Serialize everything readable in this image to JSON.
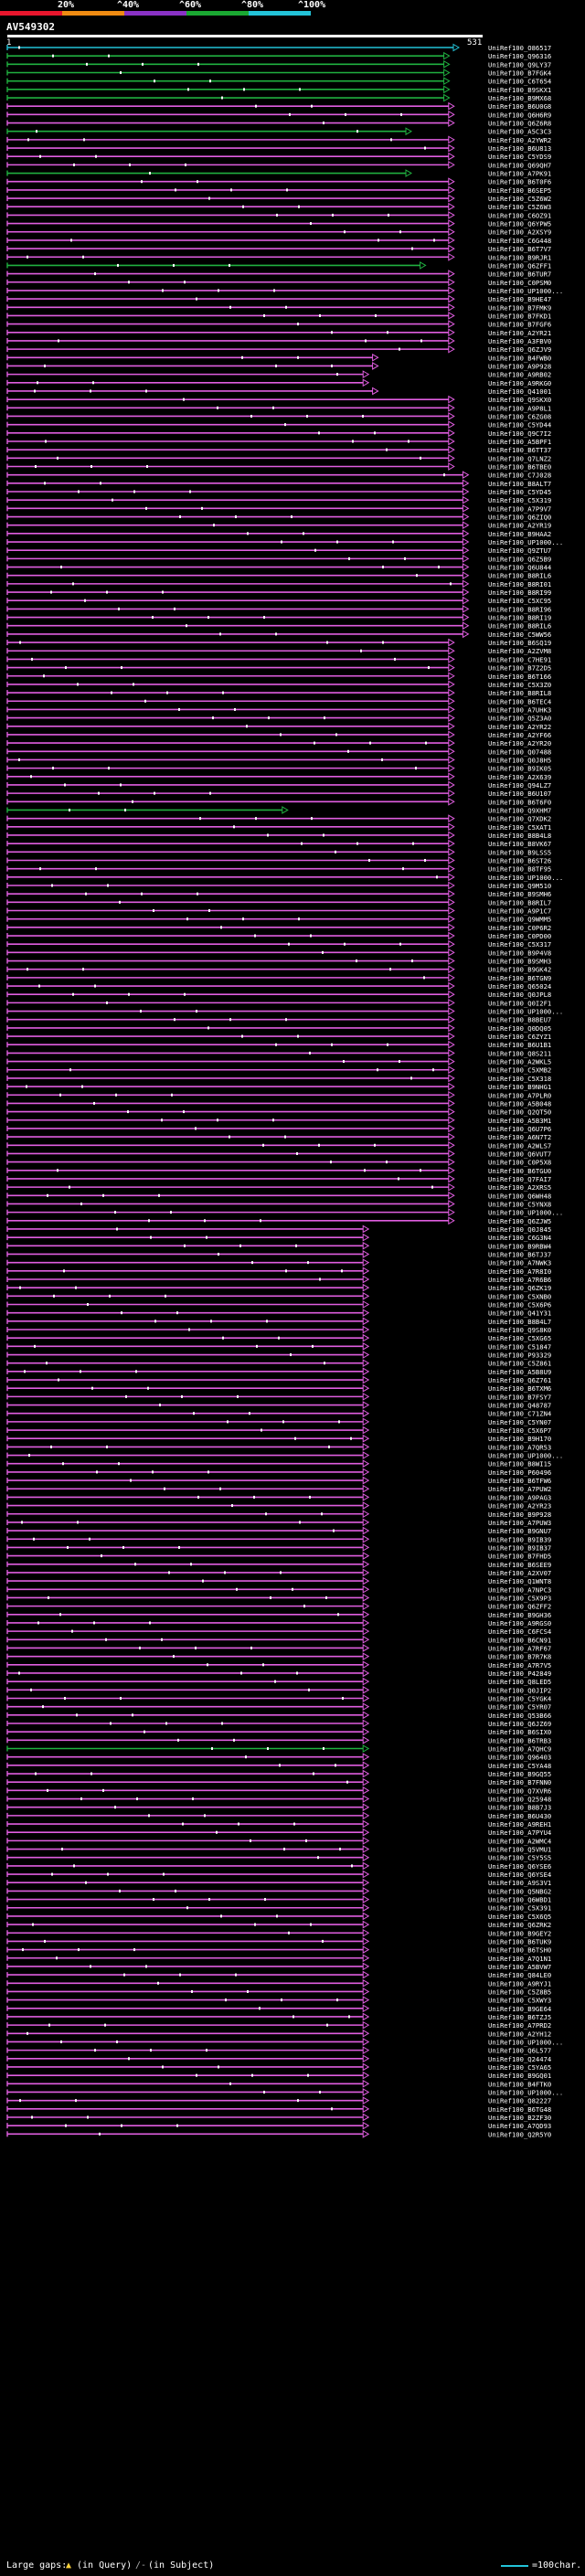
{
  "scale": {
    "labels": [
      "20%",
      "^40%",
      "^60%",
      "^80%",
      "^100%"
    ],
    "colors": [
      "#e8162d",
      "#ef8b12",
      "#8a32c6",
      "#1aa832",
      "#23c3d8"
    ]
  },
  "query": {
    "id": "AV549302",
    "start": "1",
    "end": "531"
  },
  "colors": {
    "pink": "#e05ee0",
    "green": "#20b040",
    "cyan": "#23c3d8",
    "white": "#ffffff",
    "black": "#000000"
  },
  "hits": [
    {
      "id": "UniRef100_O86517",
      "c": "c",
      "e": 0.95
    },
    {
      "id": "UniRef100_Q96316",
      "c": "g",
      "e": 0.93
    },
    {
      "id": "UniRef100_Q9LY37",
      "c": "g",
      "e": 0.93
    },
    {
      "id": "UniRef100_B7FGK4",
      "c": "g",
      "e": 0.93
    },
    {
      "id": "UniRef100_C6T654",
      "c": "g",
      "e": 0.93
    },
    {
      "id": "UniRef100_B9SKX1",
      "c": "g",
      "e": 0.93
    },
    {
      "id": "UniRef100_B9MX68",
      "c": "g",
      "e": 0.93
    },
    {
      "id": "UniRef100_B6U0G8",
      "c": "p",
      "e": 0.94
    },
    {
      "id": "UniRef100_Q6H6R9",
      "c": "p",
      "e": 0.94
    },
    {
      "id": "UniRef100_Q6Z6R8",
      "c": "p",
      "e": 0.94
    },
    {
      "id": "UniRef100_A5C3C3",
      "c": "g",
      "e": 0.85
    },
    {
      "id": "UniRef100_A2YWR2",
      "c": "p",
      "e": 0.94
    },
    {
      "id": "UniRef100_B6U813",
      "c": "p",
      "e": 0.94
    },
    {
      "id": "UniRef100_C5YDS9",
      "c": "p",
      "e": 0.94
    },
    {
      "id": "UniRef100_Q69QH7",
      "c": "p",
      "e": 0.94
    },
    {
      "id": "UniRef100_A7PK91",
      "c": "g",
      "e": 0.85
    },
    {
      "id": "UniRef100_B6T0F6",
      "c": "p",
      "e": 0.94
    },
    {
      "id": "UniRef100_B6SEP5",
      "c": "p",
      "e": 0.94
    },
    {
      "id": "UniRef100_C5Z6W2",
      "c": "p",
      "e": 0.94
    },
    {
      "id": "UniRef100_C5Z6W3",
      "c": "p",
      "e": 0.94
    },
    {
      "id": "UniRef100_C6OZ91",
      "c": "p",
      "e": 0.94
    },
    {
      "id": "UniRef100_Q6YPW5",
      "c": "p",
      "e": 0.94
    },
    {
      "id": "UniRef100_A2XSY9",
      "c": "p",
      "e": 0.94
    },
    {
      "id": "UniRef100_C6G448",
      "c": "p",
      "e": 0.94
    },
    {
      "id": "UniRef100_B6T7V7",
      "c": "p",
      "e": 0.94
    },
    {
      "id": "UniRef100_B9RJR1",
      "c": "p",
      "e": 0.94
    },
    {
      "id": "UniRef100_Q6ZFF1",
      "c": "g",
      "e": 0.88
    },
    {
      "id": "UniRef100_B6TUR7",
      "c": "p",
      "e": 0.94
    },
    {
      "id": "UniRef100_C0PSM0",
      "c": "p",
      "e": 0.94
    },
    {
      "id": "UniRef100_UP1000...",
      "c": "p",
      "e": 0.94
    },
    {
      "id": "UniRef100_B9HE47",
      "c": "p",
      "e": 0.94
    },
    {
      "id": "UniRef100_B7FMK9",
      "c": "p",
      "e": 0.94
    },
    {
      "id": "UniRef100_B7FKD1",
      "c": "p",
      "e": 0.94
    },
    {
      "id": "UniRef100_B7FGF6",
      "c": "p",
      "e": 0.94
    },
    {
      "id": "UniRef100_A2YR21",
      "c": "p",
      "e": 0.94
    },
    {
      "id": "UniRef100_A3FBV0",
      "c": "p",
      "e": 0.94
    },
    {
      "id": "UniRef100_Q6ZJV9",
      "c": "p",
      "e": 0.94
    },
    {
      "id": "UniRef100_B4FWB0",
      "c": "p",
      "e": 0.78
    },
    {
      "id": "UniRef100_A9P928",
      "c": "p",
      "e": 0.78
    },
    {
      "id": "UniRef100_A9RB02",
      "c": "p",
      "e": 0.76
    },
    {
      "id": "UniRef100_A9RKG0",
      "c": "p",
      "e": 0.76
    },
    {
      "id": "UniRef100_Q41001",
      "c": "p",
      "e": 0.78
    },
    {
      "id": "UniRef100_Q9SKX0",
      "c": "p",
      "e": 0.94
    },
    {
      "id": "UniRef100_A9P8L1",
      "c": "p",
      "e": 0.94
    },
    {
      "id": "UniRef100_C6ZG08",
      "c": "p",
      "e": 0.94
    },
    {
      "id": "UniRef100_C5YD44",
      "c": "p",
      "e": 0.94
    },
    {
      "id": "UniRef100_Q9C7I2",
      "c": "p",
      "e": 0.94
    },
    {
      "id": "UniRef100_A5BPF1",
      "c": "p",
      "e": 0.94
    },
    {
      "id": "UniRef100_B6TT37",
      "c": "p",
      "e": 0.94
    },
    {
      "id": "UniRef100_Q7LNZ2",
      "c": "p",
      "e": 0.94
    },
    {
      "id": "UniRef100_B6TBE0",
      "c": "p",
      "e": 0.94
    },
    {
      "id": "UniRef100_C7J028",
      "c": "p",
      "e": 0.97
    },
    {
      "id": "UniRef100_B8ALT7",
      "c": "p",
      "e": 0.97
    },
    {
      "id": "UniRef100_C5YD45",
      "c": "p",
      "e": 0.97
    },
    {
      "id": "UniRef100_C5X319",
      "c": "p",
      "e": 0.97
    },
    {
      "id": "UniRef100_A7P9V7",
      "c": "p",
      "e": 0.97
    },
    {
      "id": "UniRef100_Q6ZIQ0",
      "c": "p",
      "e": 0.97
    },
    {
      "id": "UniRef100_A2YR19",
      "c": "p",
      "e": 0.97
    },
    {
      "id": "UniRef100_B9HAA2",
      "c": "p",
      "e": 0.97
    },
    {
      "id": "UniRef100_UP1000...",
      "c": "p",
      "e": 0.97
    },
    {
      "id": "UniRef100_Q9ZTU7",
      "c": "p",
      "e": 0.97
    },
    {
      "id": "UniRef100_Q6Z5B9",
      "c": "p",
      "e": 0.97
    },
    {
      "id": "UniRef100_Q6U844",
      "c": "p",
      "e": 0.97
    },
    {
      "id": "UniRef100_B8RIL6",
      "c": "p",
      "e": 0.97
    },
    {
      "id": "UniRef100_B8RI01",
      "c": "p",
      "e": 0.97
    },
    {
      "id": "UniRef100_B8RI99",
      "c": "p",
      "e": 0.97
    },
    {
      "id": "UniRef100_C5XC95",
      "c": "p",
      "e": 0.97
    },
    {
      "id": "UniRef100_B8RI96",
      "c": "p",
      "e": 0.97
    },
    {
      "id": "UniRef100_B8RI19",
      "c": "p",
      "e": 0.97
    },
    {
      "id": "UniRef100_B8RIL6",
      "c": "p",
      "e": 0.97
    },
    {
      "id": "UniRef100_C5WW56",
      "c": "p",
      "e": 0.97
    },
    {
      "id": "UniRef100_B6SQ19",
      "c": "p",
      "e": 0.94
    },
    {
      "id": "UniRef100_A2ZVM8",
      "c": "p",
      "e": 0.94
    },
    {
      "id": "UniRef100_C7HE91",
      "c": "p",
      "e": 0.94
    },
    {
      "id": "UniRef100_B7Z2D5",
      "c": "p",
      "e": 0.94
    },
    {
      "id": "UniRef100_B6T166",
      "c": "p",
      "e": 0.94
    },
    {
      "id": "UniRef100_C5X3Z0",
      "c": "p",
      "e": 0.94
    },
    {
      "id": "UniRef100_B8RIL8",
      "c": "p",
      "e": 0.94
    },
    {
      "id": "UniRef100_B6TEC4",
      "c": "p",
      "e": 0.94
    },
    {
      "id": "UniRef100_A7UHK3",
      "c": "p",
      "e": 0.94
    },
    {
      "id": "UniRef100_Q5Z3A0",
      "c": "p",
      "e": 0.94
    },
    {
      "id": "UniRef100_A2YR22",
      "c": "p",
      "e": 0.94
    },
    {
      "id": "UniRef100_A2YF66",
      "c": "p",
      "e": 0.94
    },
    {
      "id": "UniRef100_A2YR20",
      "c": "p",
      "e": 0.94
    },
    {
      "id": "UniRef100_Q07488",
      "c": "p",
      "e": 0.94
    },
    {
      "id": "UniRef100_Q0J8H5",
      "c": "p",
      "e": 0.94
    },
    {
      "id": "UniRef100_B9IK05",
      "c": "p",
      "e": 0.94
    },
    {
      "id": "UniRef100_A2X639",
      "c": "p",
      "e": 0.94
    },
    {
      "id": "UniRef100_Q94LZ7",
      "c": "p",
      "e": 0.94
    },
    {
      "id": "UniRef100_B6U107",
      "c": "p",
      "e": 0.94
    },
    {
      "id": "UniRef100_B6T6F0",
      "c": "p",
      "e": 0.94
    },
    {
      "id": "UniRef100_Q9XHM7",
      "c": "g",
      "e": 0.59
    },
    {
      "id": "UniRef100_Q7XDK2",
      "c": "p",
      "e": 0.94
    },
    {
      "id": "UniRef100_C5XAT1",
      "c": "p",
      "e": 0.94
    },
    {
      "id": "UniRef100_B8B4L8",
      "c": "p",
      "e": 0.94
    },
    {
      "id": "UniRef100_B8VK67",
      "c": "p",
      "e": 0.94
    },
    {
      "id": "UniRef100_B9LSS5",
      "c": "p",
      "e": 0.94
    },
    {
      "id": "UniRef100_B6ST26",
      "c": "p",
      "e": 0.94
    },
    {
      "id": "UniRef100_B8TF95",
      "c": "p",
      "e": 0.94
    },
    {
      "id": "UniRef100_UP1000...",
      "c": "p",
      "e": 0.94
    },
    {
      "id": "UniRef100_Q9M510",
      "c": "p",
      "e": 0.94
    },
    {
      "id": "UniRef100_B9SMH6",
      "c": "p",
      "e": 0.94
    },
    {
      "id": "UniRef100_B8RIL7",
      "c": "p",
      "e": 0.94
    },
    {
      "id": "UniRef100_A9P1C7",
      "c": "p",
      "e": 0.94
    },
    {
      "id": "UniRef100_Q9WMM5",
      "c": "p",
      "e": 0.94
    },
    {
      "id": "UniRef100_C0P6R2",
      "c": "p",
      "e": 0.94
    },
    {
      "id": "UniRef100_C0PD00",
      "c": "p",
      "e": 0.94
    },
    {
      "id": "UniRef100_C5X317",
      "c": "p",
      "e": 0.94
    },
    {
      "id": "UniRef100_B9P4V8",
      "c": "p",
      "e": 0.94
    },
    {
      "id": "UniRef100_B9SMH3",
      "c": "p",
      "e": 0.94
    },
    {
      "id": "UniRef100_B9GK42",
      "c": "p",
      "e": 0.94
    },
    {
      "id": "UniRef100_B6TGN9",
      "c": "p",
      "e": 0.94
    },
    {
      "id": "UniRef100_Q65024",
      "c": "p",
      "e": 0.94
    },
    {
      "id": "UniRef100_Q0JPL8",
      "c": "p",
      "e": 0.94
    },
    {
      "id": "UniRef100_Q0I2F1",
      "c": "p",
      "e": 0.94
    },
    {
      "id": "UniRef100_UP1000...",
      "c": "p",
      "e": 0.94
    },
    {
      "id": "UniRef100_B8BEU7",
      "c": "p",
      "e": 0.94
    },
    {
      "id": "UniRef100_Q0DQ05",
      "c": "p",
      "e": 0.94
    },
    {
      "id": "UniRef100_C6ZYZ1",
      "c": "p",
      "e": 0.94
    },
    {
      "id": "UniRef100_B6U1B1",
      "c": "p",
      "e": 0.94
    },
    {
      "id": "UniRef100_Q8S211",
      "c": "p",
      "e": 0.94
    },
    {
      "id": "UniRef100_A2WKL5",
      "c": "p",
      "e": 0.94
    },
    {
      "id": "UniRef100_C5XMB2",
      "c": "p",
      "e": 0.94
    },
    {
      "id": "UniRef100_C5X318",
      "c": "p",
      "e": 0.94
    },
    {
      "id": "UniRef100_B9NHG1",
      "c": "p",
      "e": 0.94
    },
    {
      "id": "UniRef100_A7PLR0",
      "c": "p",
      "e": 0.94
    },
    {
      "id": "UniRef100_A5B048",
      "c": "p",
      "e": 0.94
    },
    {
      "id": "UniRef100_Q2QT50",
      "c": "p",
      "e": 0.94
    },
    {
      "id": "UniRef100_A5B3M1",
      "c": "p",
      "e": 0.94
    },
    {
      "id": "UniRef100_Q6U7P6",
      "c": "p",
      "e": 0.94
    },
    {
      "id": "UniRef100_A6N7T2",
      "c": "p",
      "e": 0.94
    },
    {
      "id": "UniRef100_A2WLS7",
      "c": "p",
      "e": 0.94
    },
    {
      "id": "UniRef100_Q6VUT7",
      "c": "p",
      "e": 0.94
    },
    {
      "id": "UniRef100_C0P5X8",
      "c": "p",
      "e": 0.94
    },
    {
      "id": "UniRef100_B6TGU0",
      "c": "p",
      "e": 0.94
    },
    {
      "id": "UniRef100_Q7FAI7",
      "c": "p",
      "e": 0.94
    },
    {
      "id": "UniRef100_A2XRS5",
      "c": "p",
      "e": 0.94
    },
    {
      "id": "UniRef100_Q6WH48",
      "c": "p",
      "e": 0.94
    },
    {
      "id": "UniRef100_C5YNX8",
      "c": "p",
      "e": 0.94
    },
    {
      "id": "UniRef100_UP1000...",
      "c": "p",
      "e": 0.94
    },
    {
      "id": "UniRef100_Q6ZJW5",
      "c": "p",
      "e": 0.94
    },
    {
      "id": "UniRef100_Q0J845",
      "c": "p",
      "e": 0.76
    },
    {
      "id": "UniRef100_C6G3N4",
      "c": "p",
      "e": 0.76
    },
    {
      "id": "UniRef100_B9RBW4",
      "c": "p",
      "e": 0.76
    },
    {
      "id": "UniRef100_B6TJ37",
      "c": "p",
      "e": 0.76
    },
    {
      "id": "UniRef100_A7NWK3",
      "c": "p",
      "e": 0.76
    },
    {
      "id": "UniRef100_A7R8I0",
      "c": "p",
      "e": 0.76
    },
    {
      "id": "UniRef100_A7R6B6",
      "c": "p",
      "e": 0.76
    },
    {
      "id": "UniRef100_Q6ZK19",
      "c": "p",
      "e": 0.76
    },
    {
      "id": "UniRef100_C5XNB0",
      "c": "p",
      "e": 0.76
    },
    {
      "id": "UniRef100_C5X6P6",
      "c": "p",
      "e": 0.76
    },
    {
      "id": "UniRef100_Q41Y31",
      "c": "p",
      "e": 0.76
    },
    {
      "id": "UniRef100_B8B4L7",
      "c": "p",
      "e": 0.76
    },
    {
      "id": "UniRef100_Q9S8K0",
      "c": "p",
      "e": 0.76
    },
    {
      "id": "UniRef100_C5XG65",
      "c": "p",
      "e": 0.76
    },
    {
      "id": "UniRef100_C51847",
      "c": "p",
      "e": 0.76
    },
    {
      "id": "UniRef100_P93329",
      "c": "p",
      "e": 0.76
    },
    {
      "id": "UniRef100_C5Z861",
      "c": "p",
      "e": 0.76
    },
    {
      "id": "UniRef100_A5B8U9",
      "c": "p",
      "e": 0.76
    },
    {
      "id": "UniRef100_Q6Z761",
      "c": "p",
      "e": 0.76
    },
    {
      "id": "UniRef100_B6TXM6",
      "c": "p",
      "e": 0.76
    },
    {
      "id": "UniRef100_B7FSY7",
      "c": "p",
      "e": 0.76
    },
    {
      "id": "UniRef100_Q48787",
      "c": "p",
      "e": 0.76
    },
    {
      "id": "UniRef100_C71ZN4",
      "c": "p",
      "e": 0.76
    },
    {
      "id": "UniRef100_C5YN07",
      "c": "p",
      "e": 0.76
    },
    {
      "id": "UniRef100_C5X6P7",
      "c": "p",
      "e": 0.76
    },
    {
      "id": "UniRef100_B9H170",
      "c": "p",
      "e": 0.76
    },
    {
      "id": "UniRef100_A7QR53",
      "c": "p",
      "e": 0.76
    },
    {
      "id": "UniRef100_UP1000...",
      "c": "p",
      "e": 0.76
    },
    {
      "id": "UniRef100_B8WI15",
      "c": "p",
      "e": 0.76
    },
    {
      "id": "UniRef100_P60496",
      "c": "p",
      "e": 0.76
    },
    {
      "id": "UniRef100_B6TFW6",
      "c": "p",
      "e": 0.76
    },
    {
      "id": "UniRef100_A7PUW2",
      "c": "p",
      "e": 0.76
    },
    {
      "id": "UniRef100_A9PAG3",
      "c": "p",
      "e": 0.76
    },
    {
      "id": "UniRef100_A2YR23",
      "c": "p",
      "e": 0.76
    },
    {
      "id": "UniRef100_B9P928",
      "c": "p",
      "e": 0.76
    },
    {
      "id": "UniRef100_A7PUW3",
      "c": "p",
      "e": 0.76
    },
    {
      "id": "UniRef100_B9GNU7",
      "c": "p",
      "e": 0.76
    },
    {
      "id": "UniRef100_B9IB39",
      "c": "p",
      "e": 0.76
    },
    {
      "id": "UniRef100_B9IB37",
      "c": "p",
      "e": 0.76
    },
    {
      "id": "UniRef100_B7FHD5",
      "c": "p",
      "e": 0.76
    },
    {
      "id": "UniRef100_B6SEE9",
      "c": "p",
      "e": 0.76
    },
    {
      "id": "UniRef100_A2XV07",
      "c": "p",
      "e": 0.76
    },
    {
      "id": "UniRef100_Q1WNT8",
      "c": "p",
      "e": 0.76
    },
    {
      "id": "UniRef100_A7NPC3",
      "c": "p",
      "e": 0.76
    },
    {
      "id": "UniRef100_C5X9P3",
      "c": "p",
      "e": 0.76
    },
    {
      "id": "UniRef100_Q6ZFF2",
      "c": "p",
      "e": 0.76
    },
    {
      "id": "UniRef100_B9GH36",
      "c": "p",
      "e": 0.76
    },
    {
      "id": "UniRef100_A9RGS0",
      "c": "p",
      "e": 0.76
    },
    {
      "id": "UniRef100_C6FCS4",
      "c": "p",
      "e": 0.76
    },
    {
      "id": "UniRef100_B6CN91",
      "c": "p",
      "e": 0.76
    },
    {
      "id": "UniRef100_A7RF67",
      "c": "p",
      "e": 0.76
    },
    {
      "id": "UniRef100_B7R7K8",
      "c": "p",
      "e": 0.76
    },
    {
      "id": "UniRef100_A7R7V5",
      "c": "p",
      "e": 0.76
    },
    {
      "id": "UniRef100_P42849",
      "c": "p",
      "e": 0.76
    },
    {
      "id": "UniRef100_Q8LED5",
      "c": "p",
      "e": 0.76
    },
    {
      "id": "UniRef100_Q0JIP2",
      "c": "p",
      "e": 0.76
    },
    {
      "id": "UniRef100_C5YGK4",
      "c": "p",
      "e": 0.76
    },
    {
      "id": "UniRef100_C5YR07",
      "c": "p",
      "e": 0.76
    },
    {
      "id": "UniRef100_Q53B66",
      "c": "p",
      "e": 0.76
    },
    {
      "id": "UniRef100_Q6JZ69",
      "c": "p",
      "e": 0.76
    },
    {
      "id": "UniRef100_B6SIX0",
      "c": "p",
      "e": 0.76
    },
    {
      "id": "UniRef100_B6TRB3",
      "c": "p",
      "e": 0.76
    },
    {
      "id": "UniRef100_A7QHC9",
      "c": "g",
      "e": 0.76
    },
    {
      "id": "UniRef100_Q96403",
      "c": "p",
      "e": 0.76
    },
    {
      "id": "UniRef100_C5YA48",
      "c": "p",
      "e": 0.76
    },
    {
      "id": "UniRef100_B9GQ55",
      "c": "p",
      "e": 0.76
    },
    {
      "id": "UniRef100_B7FNN0",
      "c": "p",
      "e": 0.76
    },
    {
      "id": "UniRef100_Q7XVR6",
      "c": "p",
      "e": 0.76
    },
    {
      "id": "UniRef100_Q25948",
      "c": "p",
      "e": 0.76
    },
    {
      "id": "UniRef100_B8B7J3",
      "c": "p",
      "e": 0.76
    },
    {
      "id": "UniRef100_B6U430",
      "c": "p",
      "e": 0.76
    },
    {
      "id": "UniRef100_A9REH1",
      "c": "p",
      "e": 0.76
    },
    {
      "id": "UniRef100_A7PYU4",
      "c": "p",
      "e": 0.76
    },
    {
      "id": "UniRef100_A2WMC4",
      "c": "p",
      "e": 0.76
    },
    {
      "id": "UniRef100_Q5VMU1",
      "c": "p",
      "e": 0.76
    },
    {
      "id": "UniRef100_C5Y5S5",
      "c": "p",
      "e": 0.76
    },
    {
      "id": "UniRef100_Q6YSE6",
      "c": "p",
      "e": 0.76
    },
    {
      "id": "UniRef100_Q6YSE4",
      "c": "p",
      "e": 0.76
    },
    {
      "id": "UniRef100_A9S3V1",
      "c": "p",
      "e": 0.76
    },
    {
      "id": "UniRef100_Q5NBG2",
      "c": "p",
      "e": 0.76
    },
    {
      "id": "UniRef100_Q6WBD1",
      "c": "p",
      "e": 0.76
    },
    {
      "id": "UniRef100_C5X391",
      "c": "p",
      "e": 0.76
    },
    {
      "id": "UniRef100_C5X6Q5",
      "c": "p",
      "e": 0.76
    },
    {
      "id": "UniRef100_Q6ZRK2",
      "c": "p",
      "e": 0.76
    },
    {
      "id": "UniRef100_B9GEY2",
      "c": "p",
      "e": 0.76
    },
    {
      "id": "UniRef100_B6TUK9",
      "c": "p",
      "e": 0.76
    },
    {
      "id": "UniRef100_B6TSH0",
      "c": "p",
      "e": 0.76
    },
    {
      "id": "UniRef100_A7Q1N1",
      "c": "p",
      "e": 0.76
    },
    {
      "id": "UniRef100_A5BVW7",
      "c": "p",
      "e": 0.76
    },
    {
      "id": "UniRef100_Q84LE0",
      "c": "p",
      "e": 0.76
    },
    {
      "id": "UniRef100_A9RYJ1",
      "c": "p",
      "e": 0.76
    },
    {
      "id": "UniRef100_C5Z8B5",
      "c": "p",
      "e": 0.76
    },
    {
      "id": "UniRef100_C5XWY3",
      "c": "p",
      "e": 0.76
    },
    {
      "id": "UniRef100_B9GE64",
      "c": "p",
      "e": 0.76
    },
    {
      "id": "UniRef100_B6TZJ5",
      "c": "p",
      "e": 0.76
    },
    {
      "id": "UniRef100_A7PRD2",
      "c": "p",
      "e": 0.76
    },
    {
      "id": "UniRef100_A2YH12",
      "c": "p",
      "e": 0.76
    },
    {
      "id": "UniRef100_UP1000...",
      "c": "p",
      "e": 0.76
    },
    {
      "id": "UniRef100_Q6L577",
      "c": "p",
      "e": 0.76
    },
    {
      "id": "UniRef100_Q24474",
      "c": "p",
      "e": 0.76
    },
    {
      "id": "UniRef100_C5YA65",
      "c": "p",
      "e": 0.76
    },
    {
      "id": "UniRef100_B9GQ01",
      "c": "p",
      "e": 0.76
    },
    {
      "id": "UniRef100_B4FTK0",
      "c": "p",
      "e": 0.76
    },
    {
      "id": "UniRef100_UP1000...",
      "c": "p",
      "e": 0.76
    },
    {
      "id": "UniRef100_Q82227",
      "c": "p",
      "e": 0.76
    },
    {
      "id": "UniRef100_B6TG48",
      "c": "p",
      "e": 0.76
    },
    {
      "id": "UniRef100_B2ZF30",
      "c": "p",
      "e": 0.76
    },
    {
      "id": "UniRef100_A7QD93",
      "c": "p",
      "e": 0.76
    },
    {
      "id": "UniRef100_Q2R5Y0",
      "c": "p",
      "e": 0.76
    }
  ],
  "legend": {
    "large_gaps": "Large gaps:",
    "in_query": "(in Query)",
    "in_subject": "(in Subject)",
    "scale": "=100char."
  }
}
